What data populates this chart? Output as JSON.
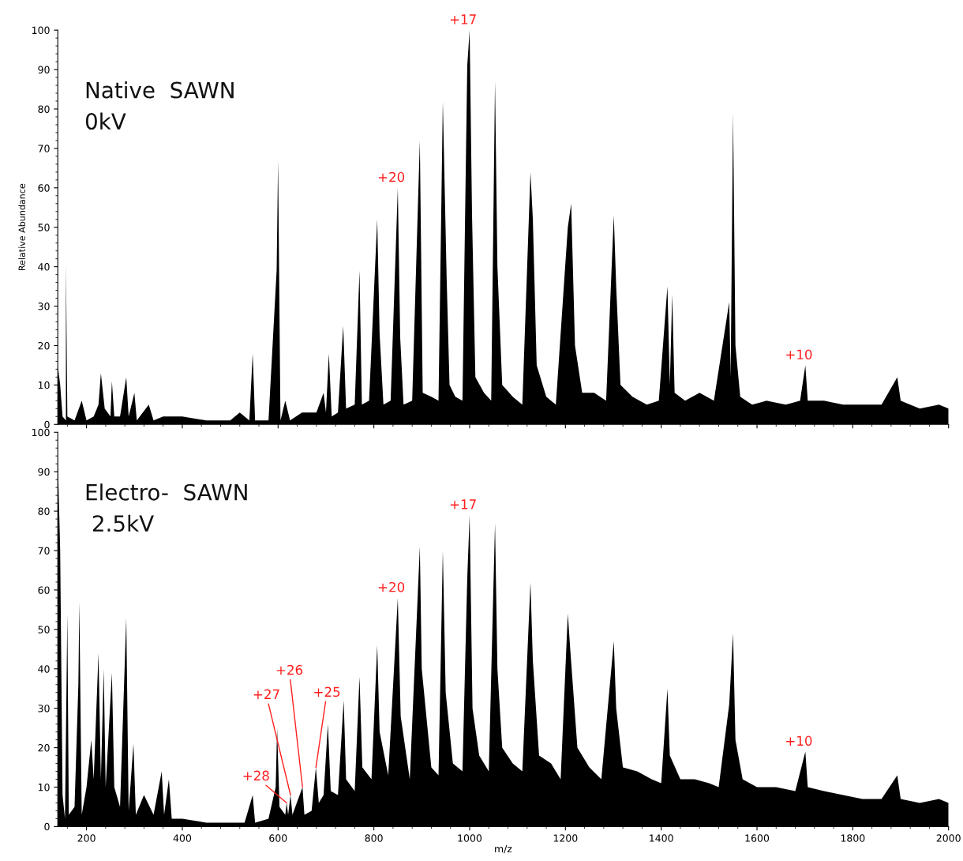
{
  "chart_data": [
    {
      "type": "area",
      "ylabel": "Relative Abundance",
      "xlim": [
        140,
        2000
      ],
      "ylim": [
        0,
        100
      ],
      "yticks": [
        0,
        10,
        20,
        30,
        40,
        50,
        60,
        70,
        80,
        90,
        100
      ],
      "xticks": [
        200,
        400,
        600,
        800,
        1000,
        1200,
        1400,
        1600,
        1800,
        2000
      ],
      "tick_labels": "y",
      "grid": false,
      "legend": false,
      "annotations": [
        "Native  SAWN\n0kV",
        {
          "text": "+20",
          "x": 850,
          "y": 60
        },
        {
          "text": "+17",
          "x": 1000,
          "y": 100
        },
        {
          "text": "+10",
          "x": 1701,
          "y": 15
        }
      ],
      "series": [
        {
          "color": "#000000",
          "x": [
            140,
            145,
            150,
            157,
            157,
            160,
            175,
            190,
            200,
            215,
            225,
            230,
            238,
            250,
            253,
            258,
            270,
            283,
            288,
            300,
            305,
            330,
            340,
            360,
            400,
            450,
            500,
            520,
            540,
            547,
            552,
            580,
            597,
            600,
            605,
            615,
            625,
            650,
            680,
            695,
            700,
            706,
            712,
            725,
            736,
            742,
            760,
            770,
            775,
            790,
            807,
            812,
            820,
            835,
            850,
            855,
            862,
            880,
            896,
            902,
            920,
            935,
            944,
            952,
            958,
            970,
            985,
            995,
            1000,
            1005,
            1012,
            1030,
            1045,
            1053,
            1058,
            1068,
            1090,
            1110,
            1127,
            1132,
            1140,
            1160,
            1180,
            1205,
            1212,
            1220,
            1235,
            1260,
            1285,
            1301,
            1306,
            1315,
            1340,
            1370,
            1395,
            1413,
            1418,
            1423,
            1428,
            1450,
            1480,
            1510,
            1542,
            1545,
            1550,
            1555,
            1565,
            1590,
            1620,
            1660,
            1690,
            1701,
            1706,
            1740,
            1780,
            1820,
            1860,
            1893,
            1900,
            1940,
            1980,
            2000
          ],
          "values": [
            15,
            10,
            2,
            1,
            41,
            2,
            1,
            6,
            1,
            2,
            5,
            13,
            4,
            2,
            11,
            2,
            2,
            12,
            2,
            8,
            1,
            5,
            1,
            2,
            2,
            1,
            1,
            3,
            1,
            18,
            1,
            1,
            39,
            67,
            1,
            6,
            1,
            3,
            3,
            8,
            3,
            18,
            2,
            3,
            25,
            4,
            5,
            39,
            5,
            6,
            52,
            23,
            5,
            6,
            60,
            22,
            5,
            6,
            72,
            8,
            7,
            6,
            82,
            37,
            10,
            7,
            6,
            91,
            100,
            53,
            12,
            8,
            6,
            87,
            40,
            10,
            7,
            5,
            64,
            52,
            15,
            7,
            5,
            50,
            56,
            20,
            8,
            8,
            6,
            53,
            35,
            10,
            7,
            5,
            6,
            35,
            10,
            33,
            8,
            6,
            8,
            6,
            31,
            12,
            79,
            20,
            7,
            5,
            6,
            5,
            6,
            15,
            6,
            6,
            5,
            5,
            5,
            12,
            6,
            4,
            5,
            4
          ]
        }
      ]
    },
    {
      "type": "area",
      "xlabel": "m/z",
      "xlim": [
        140,
        2000
      ],
      "ylim": [
        0,
        100
      ],
      "yticks": [
        0,
        10,
        20,
        30,
        40,
        50,
        60,
        70,
        80,
        90,
        100
      ],
      "xticks": [
        200,
        400,
        600,
        800,
        1000,
        1200,
        1400,
        1600,
        1800,
        2000
      ],
      "grid": false,
      "legend": false,
      "annotations": [
        "Electro-  SAWN\n 2.5kV",
        {
          "text": "+28",
          "x": 618,
          "y": 6
        },
        {
          "text": "+27",
          "x": 626,
          "y": 8
        },
        {
          "text": "+26",
          "x": 651,
          "y": 10
        },
        {
          "text": "+25",
          "x": 679,
          "y": 15
        },
        {
          "text": "+20",
          "x": 850,
          "y": 58
        },
        {
          "text": "+17",
          "x": 1000,
          "y": 79
        },
        {
          "text": "+10",
          "x": 1701,
          "y": 19
        }
      ],
      "series": [
        {
          "color": "#000000",
          "x": [
            140,
            145,
            150,
            155,
            160,
            163,
            175,
            183,
            185,
            190,
            200,
            210,
            215,
            225,
            230,
            236,
            240,
            253,
            258,
            270,
            283,
            288,
            298,
            303,
            320,
            340,
            357,
            362,
            372,
            378,
            400,
            450,
            500,
            530,
            547,
            552,
            580,
            595,
            598,
            603,
            615,
            618,
            621,
            626,
            630,
            651,
            655,
            670,
            679,
            685,
            695,
            704,
            710,
            725,
            737,
            742,
            760,
            770,
            776,
            795,
            807,
            812,
            830,
            850,
            856,
            875,
            896,
            900,
            920,
            935,
            944,
            950,
            965,
            985,
            995,
            1000,
            1006,
            1020,
            1040,
            1053,
            1058,
            1068,
            1090,
            1110,
            1127,
            1132,
            1145,
            1170,
            1190,
            1205,
            1210,
            1225,
            1250,
            1275,
            1301,
            1306,
            1320,
            1350,
            1380,
            1400,
            1413,
            1418,
            1440,
            1470,
            1500,
            1520,
            1542,
            1550,
            1555,
            1570,
            1600,
            1640,
            1680,
            1701,
            1706,
            1740,
            1780,
            1820,
            1860,
            1893,
            1900,
            1940,
            1980,
            2000
          ],
          "values": [
            94,
            70,
            8,
            2,
            54,
            3,
            5,
            36,
            57,
            3,
            10,
            22,
            12,
            44,
            12,
            40,
            10,
            39,
            10,
            5,
            53,
            4,
            21,
            3,
            8,
            3,
            14,
            3,
            12,
            2,
            2,
            1,
            1,
            1,
            8,
            1,
            2,
            10,
            25,
            5,
            3,
            6,
            3,
            8,
            3,
            10,
            3,
            4,
            15,
            6,
            8,
            26,
            9,
            8,
            32,
            12,
            9,
            38,
            15,
            12,
            46,
            24,
            13,
            58,
            28,
            12,
            71,
            40,
            15,
            13,
            70,
            34,
            16,
            14,
            63,
            79,
            30,
            18,
            14,
            77,
            40,
            20,
            16,
            14,
            62,
            42,
            18,
            16,
            12,
            54,
            45,
            20,
            15,
            12,
            47,
            30,
            15,
            14,
            12,
            11,
            35,
            18,
            12,
            12,
            11,
            10,
            31,
            49,
            22,
            12,
            10,
            10,
            9,
            19,
            10,
            9,
            8,
            7,
            7,
            13,
            7,
            6,
            7,
            6
          ]
        }
      ]
    }
  ]
}
